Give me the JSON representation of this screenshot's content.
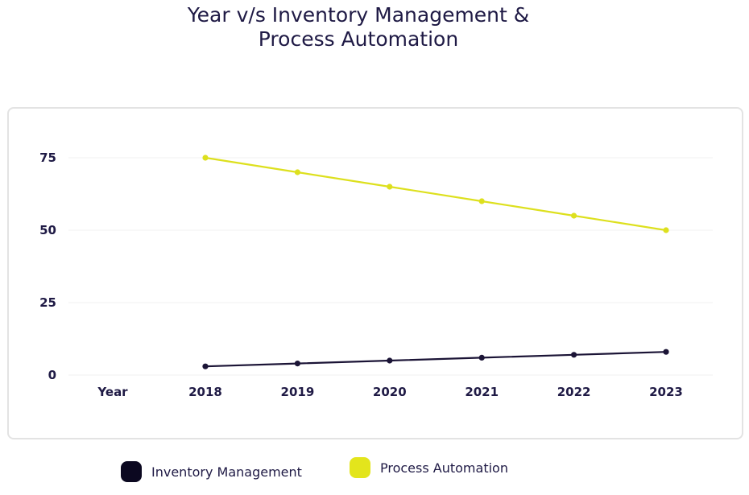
{
  "title_lines": [
    "Year v/s Inventory Management &",
    "Process Automation"
  ],
  "chart_data": {
    "type": "line",
    "categories": [
      "2018",
      "2019",
      "2020",
      "2021",
      "2022",
      "2023"
    ],
    "x_axis_label": "Year",
    "ylim": [
      0,
      75
    ],
    "yticks": [
      0,
      25,
      50,
      75
    ],
    "grid": true,
    "legend_placement": "bottom",
    "series": [
      {
        "name": "Inventory Management",
        "values": [
          3,
          4,
          5,
          6,
          7,
          8
        ],
        "color": "#1b1436"
      },
      {
        "name": "Process Automation",
        "values": [
          75,
          70,
          65,
          60,
          55,
          50
        ],
        "color": "#dde01e"
      }
    ]
  },
  "legend": [
    {
      "label": "Inventory Management",
      "color": "#0b0820"
    },
    {
      "label": "Process Automation",
      "color": "#e3e51c"
    }
  ]
}
